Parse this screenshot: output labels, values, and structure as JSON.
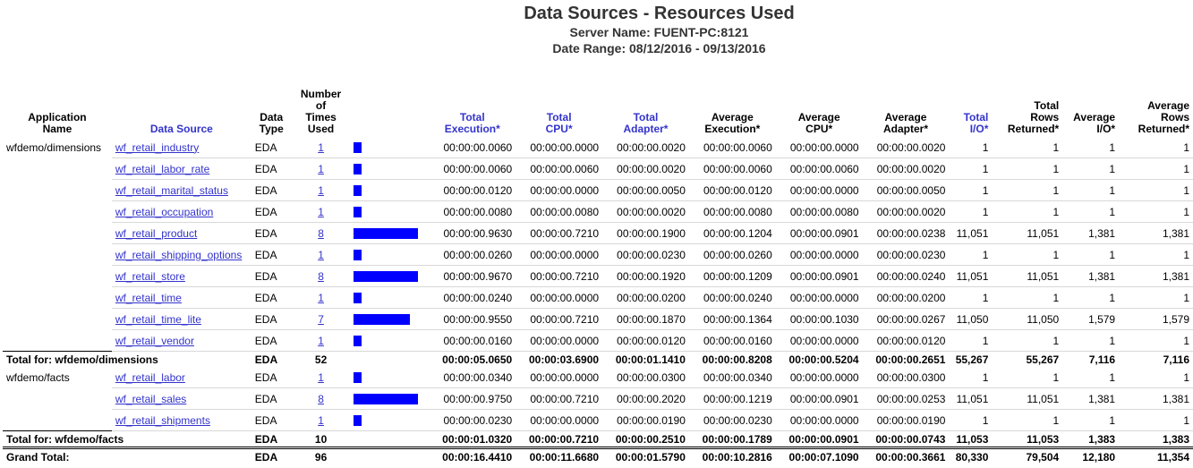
{
  "report": {
    "title": "Data Sources  - Resources Used",
    "server": "Server Name:  FUENT-PC:8121",
    "range": "Date Range:  08/12/2016 - 09/13/2016"
  },
  "columns": {
    "app": [
      "Application",
      "Name"
    ],
    "ds": "Data Source",
    "dtype": [
      "Data",
      "Type"
    ],
    "times": [
      "Number",
      "of",
      "Times",
      "Used"
    ],
    "texec": [
      "Total",
      "Execution*"
    ],
    "tcpu": [
      "Total",
      "CPU*"
    ],
    "tadapter": [
      "Total",
      "Adapter*"
    ],
    "aexec": [
      "Average",
      "Execution*"
    ],
    "acpu": [
      "Average",
      "CPU*"
    ],
    "aadapter": [
      "Average",
      "Adapter*"
    ],
    "tio": [
      "Total",
      "I/O*"
    ],
    "trows": [
      "Total",
      "Rows",
      "Returned*"
    ],
    "aio": [
      "Average",
      "I/O*"
    ],
    "arows": [
      "Average",
      "Rows",
      "Returned*"
    ]
  },
  "groups": [
    {
      "app": "wfdemo/dimensions",
      "rows": [
        {
          "ds": "wf_retail_industry",
          "dtype": "EDA",
          "times": "1",
          "bar": 1,
          "texec": "00:00:00.0060",
          "tcpu": "00:00:00.0000",
          "tadapter": "00:00:00.0020",
          "aexec": "00:00:00.0060",
          "acpu": "00:00:00.0000",
          "aadapter": "00:00:00.0020",
          "tio": "1",
          "trows": "1",
          "aio": "1",
          "arows": "1"
        },
        {
          "ds": "wf_retail_labor_rate",
          "dtype": "EDA",
          "times": "1",
          "bar": 1,
          "texec": "00:00:00.0060",
          "tcpu": "00:00:00.0060",
          "tadapter": "00:00:00.0020",
          "aexec": "00:00:00.0060",
          "acpu": "00:00:00.0060",
          "aadapter": "00:00:00.0020",
          "tio": "1",
          "trows": "1",
          "aio": "1",
          "arows": "1"
        },
        {
          "ds": "wf_retail_marital_status",
          "dtype": "EDA",
          "times": "1",
          "bar": 1,
          "texec": "00:00:00.0120",
          "tcpu": "00:00:00.0000",
          "tadapter": "00:00:00.0050",
          "aexec": "00:00:00.0120",
          "acpu": "00:00:00.0000",
          "aadapter": "00:00:00.0050",
          "tio": "1",
          "trows": "1",
          "aio": "1",
          "arows": "1"
        },
        {
          "ds": "wf_retail_occupation",
          "dtype": "EDA",
          "times": "1",
          "bar": 1,
          "texec": "00:00:00.0080",
          "tcpu": "00:00:00.0080",
          "tadapter": "00:00:00.0020",
          "aexec": "00:00:00.0080",
          "acpu": "00:00:00.0080",
          "aadapter": "00:00:00.0020",
          "tio": "1",
          "trows": "1",
          "aio": "1",
          "arows": "1"
        },
        {
          "ds": "wf_retail_product",
          "dtype": "EDA",
          "times": "8",
          "bar": 8,
          "texec": "00:00:00.9630",
          "tcpu": "00:00:00.7210",
          "tadapter": "00:00:00.1900",
          "aexec": "00:00:00.1204",
          "acpu": "00:00:00.0901",
          "aadapter": "00:00:00.0238",
          "tio": "11,051",
          "trows": "11,051",
          "aio": "1,381",
          "arows": "1,381"
        },
        {
          "ds": "wf_retail_shipping_options",
          "dtype": "EDA",
          "times": "1",
          "bar": 1,
          "texec": "00:00:00.0260",
          "tcpu": "00:00:00.0000",
          "tadapter": "00:00:00.0230",
          "aexec": "00:00:00.0260",
          "acpu": "00:00:00.0000",
          "aadapter": "00:00:00.0230",
          "tio": "1",
          "trows": "1",
          "aio": "1",
          "arows": "1"
        },
        {
          "ds": "wf_retail_store",
          "dtype": "EDA",
          "times": "8",
          "bar": 8,
          "texec": "00:00:00.9670",
          "tcpu": "00:00:00.7210",
          "tadapter": "00:00:00.1920",
          "aexec": "00:00:00.1209",
          "acpu": "00:00:00.0901",
          "aadapter": "00:00:00.0240",
          "tio": "11,051",
          "trows": "11,051",
          "aio": "1,381",
          "arows": "1,381"
        },
        {
          "ds": "wf_retail_time",
          "dtype": "EDA",
          "times": "1",
          "bar": 1,
          "texec": "00:00:00.0240",
          "tcpu": "00:00:00.0000",
          "tadapter": "00:00:00.0200",
          "aexec": "00:00:00.0240",
          "acpu": "00:00:00.0000",
          "aadapter": "00:00:00.0200",
          "tio": "1",
          "trows": "1",
          "aio": "1",
          "arows": "1"
        },
        {
          "ds": "wf_retail_time_lite",
          "dtype": "EDA",
          "times": "7",
          "bar": 7,
          "texec": "00:00:00.9550",
          "tcpu": "00:00:00.7210",
          "tadapter": "00:00:00.1870",
          "aexec": "00:00:00.1364",
          "acpu": "00:00:00.1030",
          "aadapter": "00:00:00.0267",
          "tio": "11,050",
          "trows": "11,050",
          "aio": "1,579",
          "arows": "1,579"
        },
        {
          "ds": "wf_retail_vendor",
          "dtype": "EDA",
          "times": "1",
          "bar": 1,
          "texec": "00:00:00.0160",
          "tcpu": "00:00:00.0000",
          "tadapter": "00:00:00.0120",
          "aexec": "00:00:00.0160",
          "acpu": "00:00:00.0000",
          "aadapter": "00:00:00.0120",
          "tio": "1",
          "trows": "1",
          "aio": "1",
          "arows": "1"
        }
      ],
      "total": {
        "label": "Total for:  wfdemo/dimensions",
        "dtype": "EDA",
        "times": "52",
        "texec": "00:00:05.0650",
        "tcpu": "00:00:03.6900",
        "tadapter": "00:00:01.1410",
        "aexec": "00:00:00.8208",
        "acpu": "00:00:00.5204",
        "aadapter": "00:00:00.2651",
        "tio": "55,267",
        "trows": "55,267",
        "aio": "7,116",
        "arows": "7,116"
      }
    },
    {
      "app": "wfdemo/facts",
      "rows": [
        {
          "ds": "wf_retail_labor",
          "dtype": "EDA",
          "times": "1",
          "bar": 1,
          "texec": "00:00:00.0340",
          "tcpu": "00:00:00.0000",
          "tadapter": "00:00:00.0300",
          "aexec": "00:00:00.0340",
          "acpu": "00:00:00.0000",
          "aadapter": "00:00:00.0300",
          "tio": "1",
          "trows": "1",
          "aio": "1",
          "arows": "1"
        },
        {
          "ds": "wf_retail_sales",
          "dtype": "EDA",
          "times": "8",
          "bar": 8,
          "texec": "00:00:00.9750",
          "tcpu": "00:00:00.7210",
          "tadapter": "00:00:00.2020",
          "aexec": "00:00:00.1219",
          "acpu": "00:00:00.0901",
          "aadapter": "00:00:00.0253",
          "tio": "11,051",
          "trows": "11,051",
          "aio": "1,381",
          "arows": "1,381"
        },
        {
          "ds": "wf_retail_shipments",
          "dtype": "EDA",
          "times": "1",
          "bar": 1,
          "texec": "00:00:00.0230",
          "tcpu": "00:00:00.0000",
          "tadapter": "00:00:00.0190",
          "aexec": "00:00:00.0230",
          "acpu": "00:00:00.0000",
          "aadapter": "00:00:00.0190",
          "tio": "1",
          "trows": "1",
          "aio": "1",
          "arows": "1"
        }
      ],
      "total": {
        "label": "Total for:  wfdemo/facts",
        "dtype": "EDA",
        "times": "10",
        "texec": "00:00:01.0320",
        "tcpu": "00:00:00.7210",
        "tadapter": "00:00:00.2510",
        "aexec": "00:00:00.1789",
        "acpu": "00:00:00.0901",
        "aadapter": "00:00:00.0743",
        "tio": "11,053",
        "trows": "11,053",
        "aio": "1,383",
        "arows": "1,383"
      }
    }
  ],
  "grand": {
    "label": "Grand Total:",
    "dtype": "EDA",
    "times": "96",
    "texec": "00:00:16.4410",
    "tcpu": "00:00:11.6680",
    "tadapter": "00:00:01.5790",
    "aexec": "00:00:10.2816",
    "acpu": "00:00:07.1090",
    "aadapter": "00:00:00.3661",
    "tio": "80,330",
    "trows": "79,504",
    "aio": "12,180",
    "arows": "11,354"
  },
  "bar_max": 8,
  "colors": {
    "bar": "#0000ff",
    "link": "#3333cc",
    "header_link": "#3333cc"
  }
}
